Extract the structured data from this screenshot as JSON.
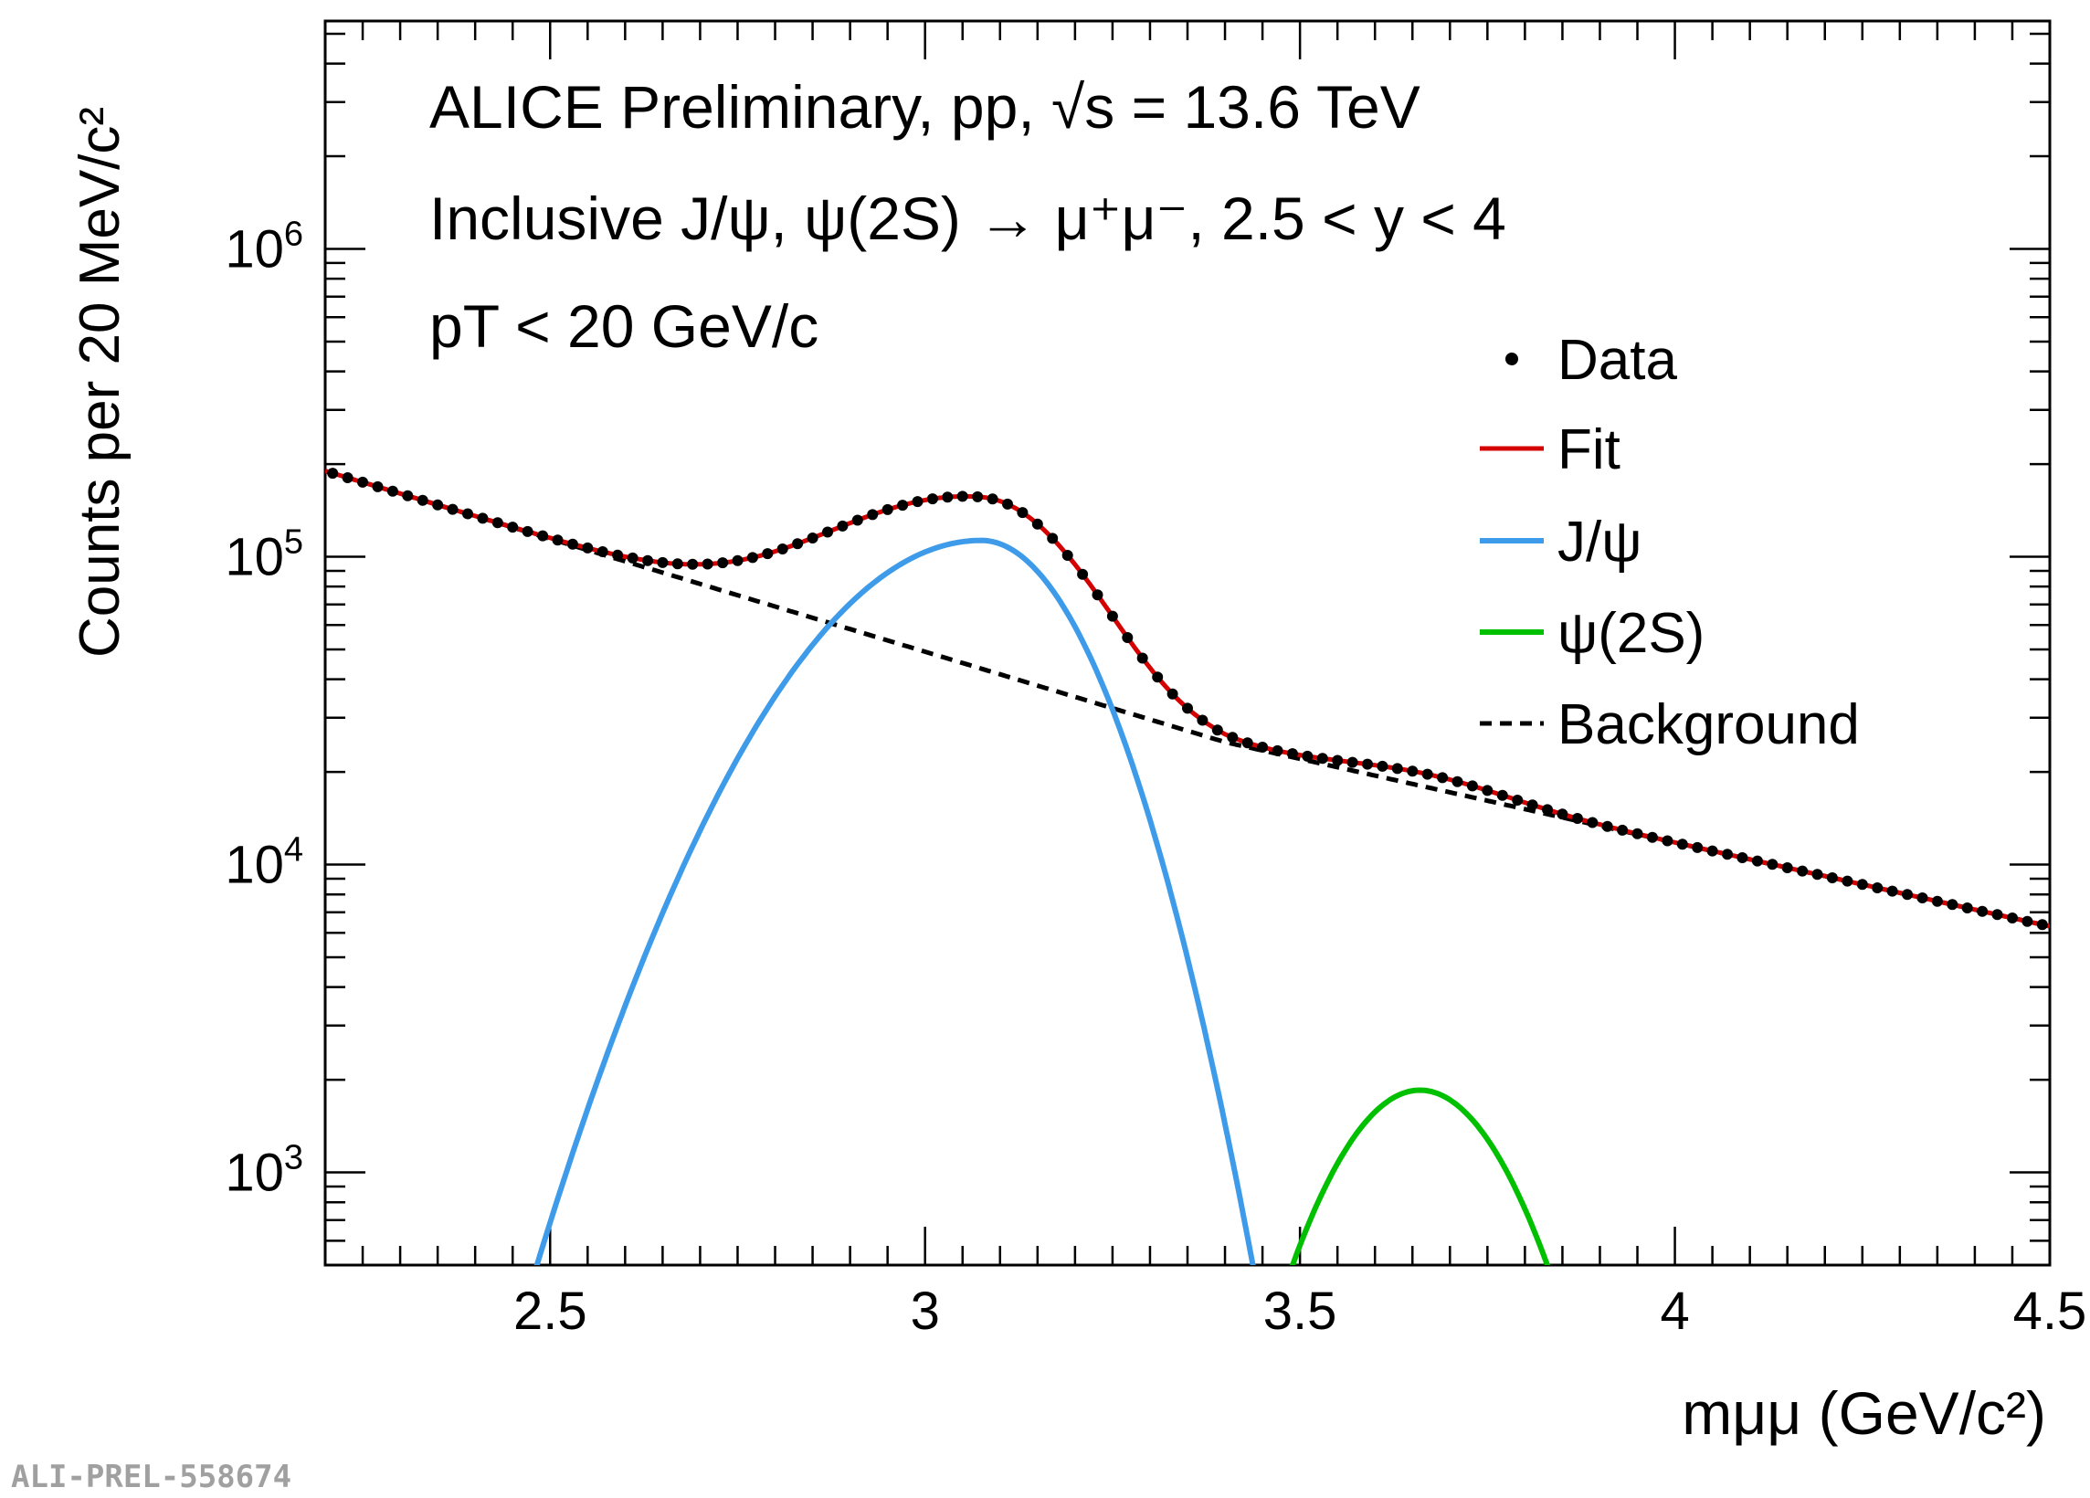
{
  "chart_data": {
    "type": "line",
    "title": "ALICE Preliminary, pp, √s = 13.6 TeV",
    "header_lines": [
      "ALICE Preliminary, pp, √s = 13.6 TeV",
      "Inclusive J/ψ, ψ(2S) → μ⁺μ⁻, 2.5 < y < 4",
      "pT < 20 GeV/c"
    ],
    "xlabel": "mμμ (GeV/c²)",
    "ylabel": "Counts per 20 MeV/c²",
    "xlim": [
      2.2,
      4.5
    ],
    "ylim": [
      500,
      5500000
    ],
    "yscale": "log",
    "x_ticks": [
      {
        "value": 2.5,
        "label": "2.5"
      },
      {
        "value": 3.0,
        "label": "3"
      },
      {
        "value": 3.5,
        "label": "3.5"
      },
      {
        "value": 4.0,
        "label": "4"
      },
      {
        "value": 4.5,
        "label": "4.5"
      }
    ],
    "y_ticks": [
      {
        "value": 1000,
        "base": "10",
        "exp": "3"
      },
      {
        "value": 10000,
        "base": "10",
        "exp": "4"
      },
      {
        "value": 100000,
        "base": "10",
        "exp": "5"
      },
      {
        "value": 1000000,
        "base": "10",
        "exp": "6"
      }
    ],
    "model": {
      "background": {
        "description": "two-slope exponential",
        "points": [
          [
            2.2,
            190000
          ],
          [
            3.4,
            25000
          ],
          [
            4.5,
            6300
          ]
        ]
      },
      "jpsi": {
        "peak_mass": 3.075,
        "peak_counts": 113000,
        "sigma_left": 0.18,
        "sigma_right": 0.11
      },
      "psi2s": {
        "peak_mass": 3.66,
        "peak_counts": 1850,
        "sigma": 0.105
      }
    },
    "data_binning": {
      "start": 2.21,
      "end": 4.49,
      "step": 0.02
    },
    "series": [
      {
        "name": "Data",
        "style": "markers",
        "color": "#000000"
      },
      {
        "name": "Fit",
        "style": "solid",
        "color": "#d50000"
      },
      {
        "name": "J/ψ",
        "style": "solid",
        "color": "#3d9be9"
      },
      {
        "name": "ψ(2S)",
        "style": "solid",
        "color": "#00c000"
      },
      {
        "name": "Background",
        "style": "dashed",
        "color": "#000000"
      }
    ],
    "legend_position": "right",
    "watermark": "ALI-PREL-558674"
  }
}
